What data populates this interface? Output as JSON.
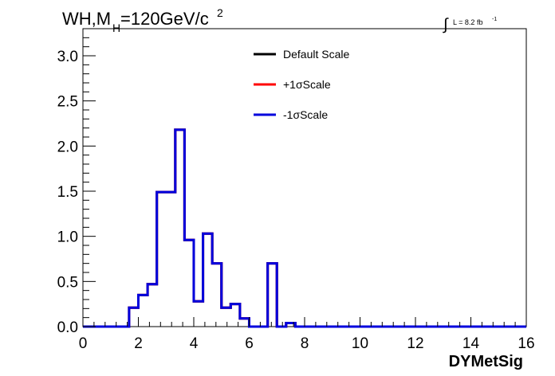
{
  "header": {
    "title_main": "WH,M",
    "title_sub": "H",
    "title_rest": "=120GeV/c",
    "title_sup": "2",
    "lumi_integral": "∫",
    "lumi_text": "L = 8.2 fb",
    "lumi_sup": "-1"
  },
  "colors": {
    "default": "#000000",
    "plus": "#ff0000",
    "minus": "#0000dd"
  },
  "chart_data": {
    "type": "line",
    "style": "step-histogram",
    "xlabel": "DYMetSig",
    "ylabel": "",
    "xlim": [
      0,
      16
    ],
    "ylim": [
      0,
      3.3
    ],
    "x_ticks": [
      0,
      2,
      4,
      6,
      8,
      10,
      12,
      14,
      16
    ],
    "x_tick_labels": [
      "0",
      "2",
      "4",
      "6",
      "8",
      "10",
      "12",
      "14",
      "16"
    ],
    "y_ticks": [
      0,
      0.5,
      1,
      1.5,
      2,
      2.5,
      3
    ],
    "y_tick_labels": [
      "0.0",
      "0.5",
      "1.0",
      "1.5",
      "2.0",
      "2.5",
      "3.0"
    ],
    "bin_width": 0.3333,
    "bin_edges_start": 0,
    "bin_count": 48,
    "legend_position": "top-center",
    "grid": false,
    "series": [
      {
        "name": "Default Scale",
        "color": "#000000",
        "values": [
          0,
          0,
          0,
          0,
          0,
          0.21,
          0.35,
          0.47,
          1.49,
          1.49,
          2.18,
          0.96,
          0.28,
          1.03,
          0.7,
          0.21,
          0.25,
          0.09,
          0,
          0,
          0.7,
          0,
          0.04,
          0,
          0,
          0,
          0,
          0,
          0,
          0,
          0,
          0,
          0,
          0,
          0,
          0,
          0,
          0,
          0,
          0,
          0,
          0,
          0,
          0,
          0,
          0,
          0,
          0
        ]
      },
      {
        "name": "+1σScale",
        "color": "#ff0000",
        "values": [
          0,
          0,
          0,
          0,
          0,
          0.21,
          0.35,
          0.47,
          1.49,
          1.49,
          2.18,
          0.96,
          0.28,
          1.03,
          0.7,
          0.21,
          0.25,
          0.09,
          0,
          0,
          0.7,
          0,
          0.04,
          0,
          0,
          0,
          0,
          0,
          0,
          0,
          0,
          0,
          0,
          0,
          0,
          0,
          0,
          0,
          0,
          0,
          0,
          0,
          0,
          0,
          0,
          0,
          0,
          0
        ]
      },
      {
        "name": "-1σScale",
        "color": "#0000dd",
        "values": [
          0,
          0,
          0,
          0,
          0,
          0.21,
          0.35,
          0.47,
          1.49,
          1.49,
          2.18,
          0.96,
          0.28,
          1.03,
          0.7,
          0.21,
          0.25,
          0.09,
          0,
          0,
          0.7,
          0,
          0.04,
          0,
          0,
          0,
          0,
          0,
          0,
          0,
          0,
          0,
          0,
          0,
          0,
          0,
          0,
          0,
          0,
          0,
          0,
          0,
          0,
          0,
          0,
          0,
          0,
          0
        ]
      }
    ]
  }
}
